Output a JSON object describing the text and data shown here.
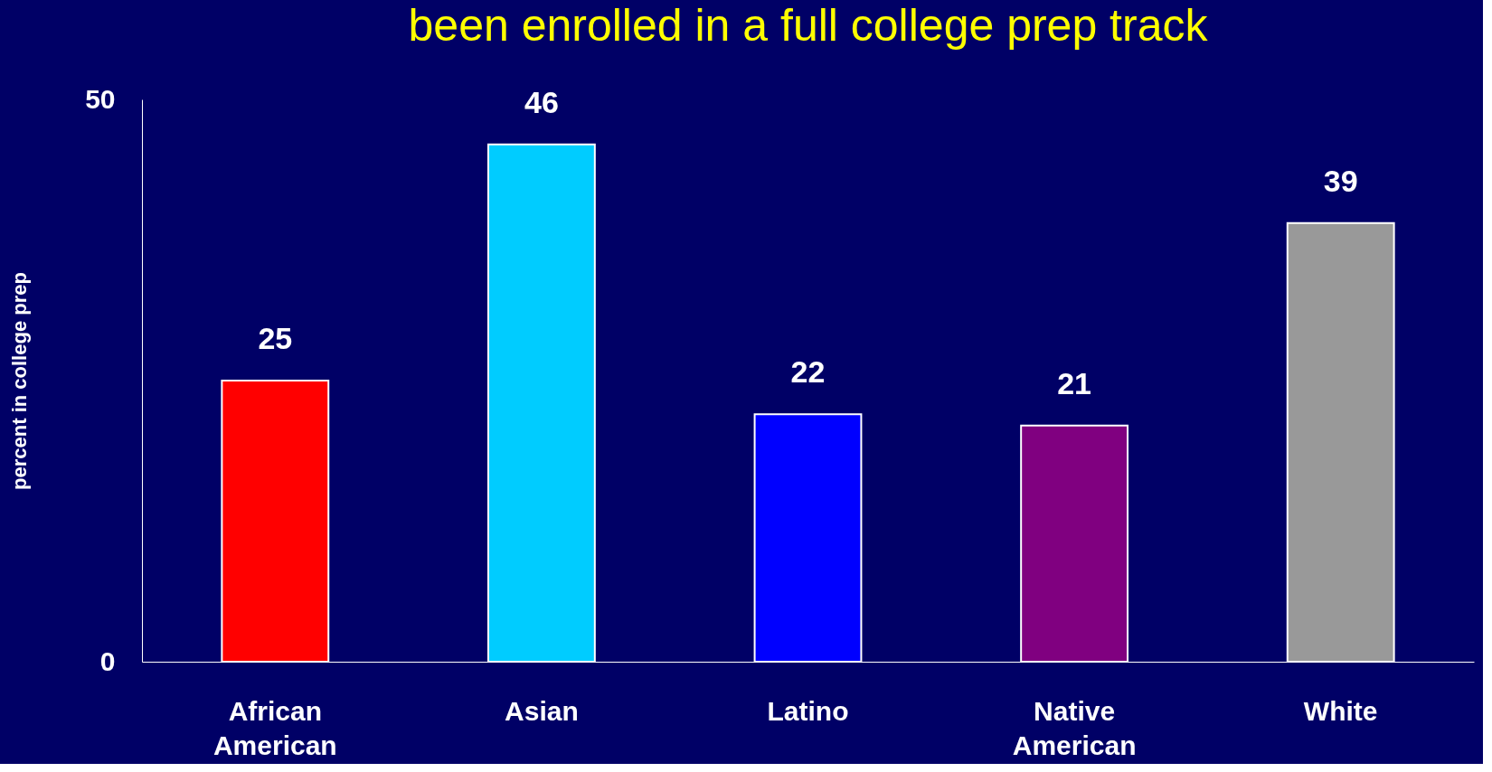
{
  "chart_data": {
    "type": "bar",
    "title": "been enrolled in a full college prep track",
    "ylabel": "percent in college prep",
    "categories": [
      "African American",
      "Asian",
      "Latino",
      "Native American",
      "White"
    ],
    "values": [
      25,
      46,
      22,
      21,
      39
    ],
    "colors": [
      "#ff0000",
      "#00ccff",
      "#0000ff",
      "#800080",
      "#999999"
    ],
    "ylim": [
      0,
      50
    ],
    "yticks": [
      0,
      50
    ],
    "grid": false,
    "data_labels": true
  }
}
